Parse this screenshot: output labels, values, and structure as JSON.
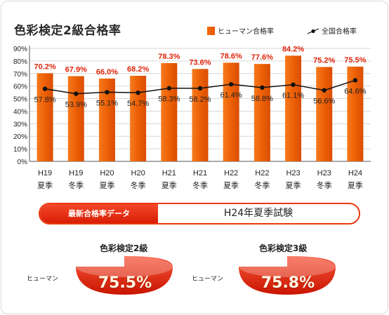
{
  "title": "色彩検定2級合格率",
  "legend": {
    "bar_label": "ヒューマン合格率",
    "line_label": "全国合格率"
  },
  "chart_data": {
    "type": "bar",
    "categories": [
      [
        "H19",
        "夏季"
      ],
      [
        "H19",
        "冬季"
      ],
      [
        "H20",
        "夏季"
      ],
      [
        "H20",
        "冬季"
      ],
      [
        "H21",
        "夏季"
      ],
      [
        "H21",
        "冬季"
      ],
      [
        "H22",
        "夏季"
      ],
      [
        "H22",
        "冬季"
      ],
      [
        "H23",
        "夏季"
      ],
      [
        "H23",
        "冬季"
      ],
      [
        "H24",
        "夏季"
      ]
    ],
    "series": [
      {
        "name": "ヒューマン合格率",
        "type": "bar",
        "values": [
          70.2,
          67.9,
          66.0,
          68.2,
          78.3,
          73.6,
          78.6,
          77.6,
          84.2,
          75.2,
          75.5
        ],
        "labels": [
          "70.2%",
          "67.9%",
          "66.0%",
          "68.2%",
          "78.3%",
          "73.6%",
          "78.6%",
          "77.6%",
          "84.2%",
          "75.2%",
          "75.5%"
        ],
        "color": "#ee6208"
      },
      {
        "name": "全国合格率",
        "type": "line",
        "values": [
          57.8,
          53.9,
          55.1,
          54.7,
          58.3,
          58.2,
          61.4,
          58.8,
          61.1,
          56.6,
          64.6
        ],
        "labels": [
          "57.8%",
          "53.9%",
          "55.1%",
          "54.7%",
          "58.3%",
          "58.2%",
          "61.4%",
          "58.8%",
          "61.1%",
          "56.6%",
          "64.6%"
        ],
        "color": "#111111"
      }
    ],
    "yticks": [
      "0%",
      "10%",
      "20%",
      "30%",
      "40%",
      "50%",
      "60%",
      "70%",
      "80%",
      "90%"
    ],
    "ylim": [
      0,
      90
    ],
    "grid": true
  },
  "banner": {
    "tab_label": "最新合格率データ",
    "exam_label": "H24年夏季試験"
  },
  "grades": [
    {
      "title": "色彩検定2級",
      "label": "ヒューマン",
      "value": "75.5%"
    },
    {
      "title": "色彩検定3級",
      "label": "ヒューマン",
      "value": "75.8%"
    }
  ],
  "colors": {
    "bar": "#ee6208",
    "bar_label": "#e0240b",
    "accent": "#e93a0e"
  }
}
